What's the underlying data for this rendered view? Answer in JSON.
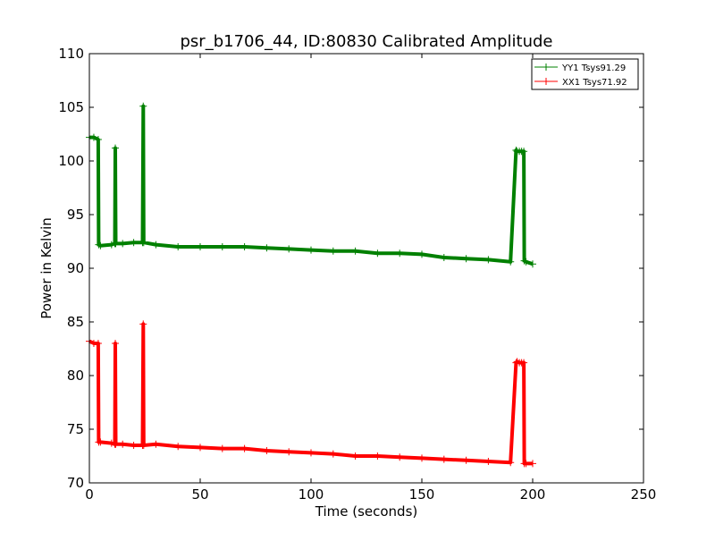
{
  "chart_data": {
    "type": "line",
    "title": "psr_b1706_44, ID:80830 Calibrated Amplitude",
    "xlabel": "Time (seconds)",
    "ylabel": "Power in Kelvin",
    "xlim": [
      0,
      250
    ],
    "ylim": [
      70,
      110
    ],
    "xticks": [
      0,
      50,
      100,
      150,
      200,
      250
    ],
    "yticks": [
      70,
      75,
      80,
      85,
      90,
      95,
      100,
      105,
      110
    ],
    "grid": false,
    "legend_position": "upper-right",
    "marker": "+",
    "series": [
      {
        "name": "YY1 Tsys91.29",
        "color": "#008000",
        "x": [
          0,
          2,
          4,
          4.2,
          5,
          10,
          11.5,
          11.7,
          11.9,
          15,
          20,
          24,
          24.3,
          24.5,
          30,
          40,
          50,
          60,
          70,
          80,
          90,
          100,
          110,
          120,
          130,
          140,
          150,
          160,
          170,
          180,
          190,
          192.5,
          193,
          194,
          195,
          196,
          196.2,
          197,
          200
        ],
        "y": [
          102.2,
          102.2,
          102.0,
          92.2,
          92.1,
          92.2,
          92.3,
          101.2,
          92.3,
          92.3,
          92.4,
          92.4,
          105.1,
          92.4,
          92.2,
          92.0,
          92.0,
          92.0,
          92.0,
          91.9,
          91.8,
          91.7,
          91.6,
          91.6,
          91.4,
          91.4,
          91.3,
          91.0,
          90.9,
          90.8,
          90.6,
          101.0,
          100.9,
          100.9,
          100.9,
          100.9,
          90.7,
          90.6,
          90.4
        ]
      },
      {
        "name": "XX1 Tsys71.92",
        "color": "#ff0000",
        "x": [
          0,
          2,
          4,
          4.2,
          5,
          10,
          11.5,
          11.7,
          11.9,
          15,
          20,
          24,
          24.3,
          24.5,
          30,
          40,
          50,
          60,
          70,
          80,
          90,
          100,
          110,
          120,
          130,
          140,
          150,
          160,
          170,
          180,
          190,
          192.5,
          193,
          194,
          195,
          196,
          196.2,
          197,
          200
        ],
        "y": [
          83.2,
          83.0,
          83.0,
          73.8,
          73.8,
          73.7,
          73.6,
          83.0,
          73.6,
          73.6,
          73.5,
          73.5,
          84.8,
          73.5,
          73.6,
          73.4,
          73.3,
          73.2,
          73.2,
          73.0,
          72.9,
          72.8,
          72.7,
          72.5,
          72.5,
          72.4,
          72.3,
          72.2,
          72.1,
          72.0,
          71.9,
          81.2,
          81.3,
          81.2,
          81.2,
          81.2,
          71.8,
          71.8,
          71.8
        ]
      }
    ]
  }
}
